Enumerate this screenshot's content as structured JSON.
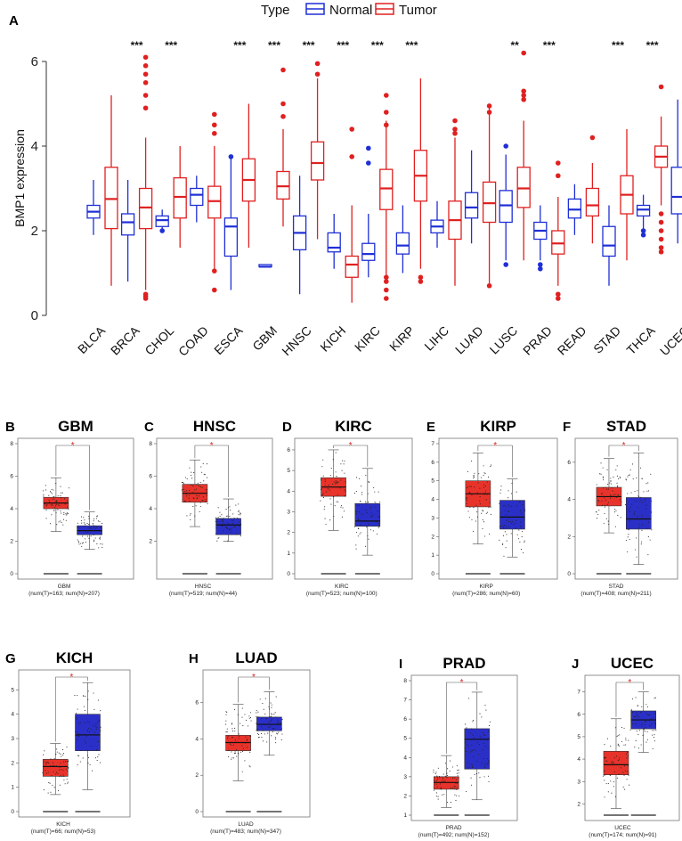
{
  "colors": {
    "normal": "#1f2fd6",
    "tumor": "#e02020",
    "gepiaTumor": "#e8332a",
    "gepiaNormal": "#2a2fc8"
  },
  "chart_data": [
    {
      "panel": "A",
      "type": "box",
      "ylabel": "BMP1 expression",
      "ylim": [
        0,
        6.5
      ],
      "yticks": [
        "0",
        "2",
        "4",
        "6"
      ],
      "legend": {
        "title": "Type",
        "items": [
          "Normal",
          "Tumor"
        ],
        "position": "top-center"
      },
      "categories": [
        "BLCA",
        "BRCA",
        "CHOL",
        "COAD",
        "ESCA",
        "GBM",
        "HNSC",
        "KICH",
        "KIRC",
        "KIRP",
        "LIHC",
        "LUAD",
        "LUSC",
        "PRAD",
        "READ",
        "STAD",
        "THCA",
        "UCEC"
      ],
      "significance": [
        "",
        "***",
        "***",
        "",
        "***",
        "***",
        "***",
        "***",
        "***",
        "***",
        "",
        "",
        "**",
        "***",
        "",
        "***",
        "***",
        ""
      ],
      "series": [
        {
          "name": "Normal",
          "boxes": [
            [
              1.9,
              2.3,
              2.45,
              2.6,
              3.2
            ],
            [
              0.8,
              1.9,
              2.2,
              2.4,
              3.2
            ],
            [
              2.0,
              2.1,
              2.25,
              2.35,
              2.5
            ],
            [
              2.2,
              2.6,
              2.85,
              3.0,
              3.3
            ],
            [
              0.6,
              1.4,
              2.1,
              2.3,
              3.7
            ],
            [
              1.15,
              1.15,
              1.15,
              1.2,
              1.2
            ],
            [
              0.5,
              1.55,
              1.95,
              2.35,
              3.3
            ],
            [
              1.1,
              1.5,
              1.6,
              1.95,
              2.4
            ],
            [
              0.9,
              1.3,
              1.45,
              1.7,
              2.4
            ],
            [
              1.0,
              1.45,
              1.65,
              1.95,
              2.6
            ],
            [
              1.6,
              1.95,
              2.1,
              2.25,
              2.7
            ],
            [
              1.7,
              2.3,
              2.55,
              2.9,
              3.9
            ],
            [
              1.3,
              2.2,
              2.6,
              2.95,
              3.8
            ],
            [
              1.3,
              1.8,
              2.0,
              2.2,
              2.6
            ],
            [
              1.9,
              2.3,
              2.5,
              2.75,
              3.1
            ],
            [
              0.7,
              1.4,
              1.65,
              2.1,
              2.6
            ],
            [
              2.0,
              2.35,
              2.5,
              2.6,
              2.85
            ],
            [
              1.7,
              2.4,
              2.8,
              3.5,
              5.1
            ]
          ]
        },
        {
          "name": "Tumor",
          "boxes": [
            [
              0.7,
              2.05,
              2.75,
              3.5,
              5.2
            ],
            [
              0.6,
              2.05,
              2.55,
              3.0,
              4.2
            ],
            [
              1.6,
              2.3,
              2.8,
              3.25,
              4.0
            ],
            [
              1.1,
              2.3,
              2.7,
              3.05,
              4.0
            ],
            [
              1.6,
              2.7,
              3.2,
              3.7,
              5.0
            ],
            [
              2.1,
              2.75,
              3.05,
              3.4,
              4.4
            ],
            [
              1.8,
              3.2,
              3.6,
              4.1,
              5.6
            ],
            [
              0.3,
              0.9,
              1.2,
              1.4,
              2.6
            ],
            [
              0.9,
              2.5,
              3.0,
              3.45,
              4.6
            ],
            [
              1.1,
              2.7,
              3.3,
              3.9,
              5.6
            ],
            [
              0.7,
              1.8,
              2.25,
              2.7,
              4.2
            ],
            [
              0.7,
              2.2,
              2.65,
              3.15,
              4.9
            ],
            [
              1.3,
              2.55,
              3.0,
              3.5,
              4.6
            ],
            [
              0.7,
              1.45,
              1.7,
              2.0,
              2.8
            ],
            [
              1.7,
              2.35,
              2.6,
              3.0,
              3.6
            ],
            [
              1.3,
              2.4,
              2.85,
              3.3,
              4.4
            ],
            [
              2.6,
              3.5,
              3.75,
              4.0,
              4.7
            ],
            [
              1.2,
              2.5,
              2.9,
              3.4,
              4.6
            ]
          ]
        }
      ]
    },
    {
      "panel": "B",
      "type": "box",
      "title": "GBM",
      "xlabel": "GBM",
      "caption": "(num(T)=163; num(N)=207)",
      "ymax": 8,
      "yticks": [
        "0",
        "2",
        "4",
        "6",
        "8"
      ],
      "sig": "*",
      "tumor": [
        2.6,
        4.0,
        4.35,
        4.7,
        5.9
      ],
      "normal": [
        1.5,
        2.4,
        2.65,
        2.95,
        3.8
      ]
    },
    {
      "panel": "C",
      "type": "box",
      "title": "HNSC",
      "xlabel": "HNSC",
      "caption": "(num(T)=519; num(N)=44)",
      "ymax": 8,
      "yticks": [
        "2",
        "4",
        "6",
        "8"
      ],
      "sig": "*",
      "tumor": [
        2.9,
        4.4,
        4.95,
        5.5,
        7.0
      ],
      "normal": [
        2.0,
        2.4,
        3.0,
        3.4,
        4.6
      ]
    },
    {
      "panel": "D",
      "type": "box",
      "title": "KIRC",
      "xlabel": "KIRC",
      "caption": "(num(T)=523; num(N)=100)",
      "ymax": 6.3,
      "yticks": [
        "0",
        "1",
        "2",
        "3",
        "4",
        "5",
        "6"
      ],
      "sig": "*",
      "tumor": [
        2.1,
        3.75,
        4.2,
        4.65,
        6.0
      ],
      "normal": [
        0.9,
        2.3,
        2.55,
        3.4,
        5.1
      ]
    },
    {
      "panel": "E",
      "type": "box",
      "title": "KIRP",
      "xlabel": "KIRP",
      "caption": "(num(T)=286; num(N)=60)",
      "ymax": 7,
      "yticks": [
        "0",
        "1",
        "2",
        "3",
        "4",
        "5",
        "6",
        "7"
      ],
      "sig": "*",
      "tumor": [
        1.6,
        3.6,
        4.3,
        5.0,
        6.5
      ],
      "normal": [
        0.9,
        2.4,
        3.05,
        3.95,
        5.1
      ]
    },
    {
      "panel": "F",
      "type": "box",
      "title": "STAD",
      "xlabel": "STAD",
      "caption": "(num(T)=408; num(N)=211)",
      "ymax": 7,
      "yticks": [
        "0",
        "2",
        "4",
        "6"
      ],
      "sig": "*",
      "tumor": [
        2.2,
        3.65,
        4.15,
        4.65,
        6.2
      ],
      "normal": [
        0.5,
        2.4,
        2.95,
        4.1,
        6.5
      ]
    },
    {
      "panel": "G",
      "type": "box",
      "title": "KICH",
      "xlabel": "KICH",
      "caption": "(num(T)=66; num(N)=53)",
      "ymax": 5.6,
      "yticks": [
        "0",
        "1",
        "2",
        "3",
        "4",
        "5"
      ],
      "sig": "*",
      "tumor": [
        0.7,
        1.45,
        1.85,
        2.15,
        2.8
      ],
      "normal": [
        0.9,
        2.5,
        3.15,
        4.0,
        5.3
      ]
    },
    {
      "panel": "H",
      "type": "box",
      "title": "LUAD",
      "xlabel": "LUAD",
      "caption": "(num(T)=483; num(N)=347)",
      "ymax": 7.5,
      "yticks": [
        "0",
        "2",
        "4",
        "6"
      ],
      "sig": "*",
      "tumor": [
        1.7,
        3.35,
        3.8,
        4.2,
        5.9
      ],
      "normal": [
        3.1,
        4.45,
        4.8,
        5.2,
        6.6
      ]
    },
    {
      "panel": "I",
      "type": "box",
      "title": "PRAD",
      "xlabel": "PRAD",
      "caption": "(num(T)=492; num(N)=152)",
      "ymin": 1,
      "ymax": 8,
      "yticks": [
        "1",
        "2",
        "3",
        "4",
        "5",
        "6",
        "7",
        "8"
      ],
      "sig": "*",
      "tumor": [
        1.4,
        2.35,
        2.7,
        3.0,
        4.1
      ],
      "normal": [
        1.8,
        3.4,
        4.95,
        5.5,
        7.4
      ]
    },
    {
      "panel": "J",
      "type": "box",
      "title": "UCEC",
      "xlabel": "UCEC",
      "caption": "(num(T)=174; num(N)=91)",
      "ymin": 1.5,
      "ymax": 7.5,
      "yticks": [
        "2",
        "3",
        "4",
        "5",
        "6",
        "7"
      ],
      "sig": "*",
      "tumor": [
        1.8,
        3.3,
        3.75,
        4.35,
        5.8
      ],
      "normal": [
        4.3,
        5.35,
        5.75,
        6.15,
        7.0
      ]
    }
  ]
}
